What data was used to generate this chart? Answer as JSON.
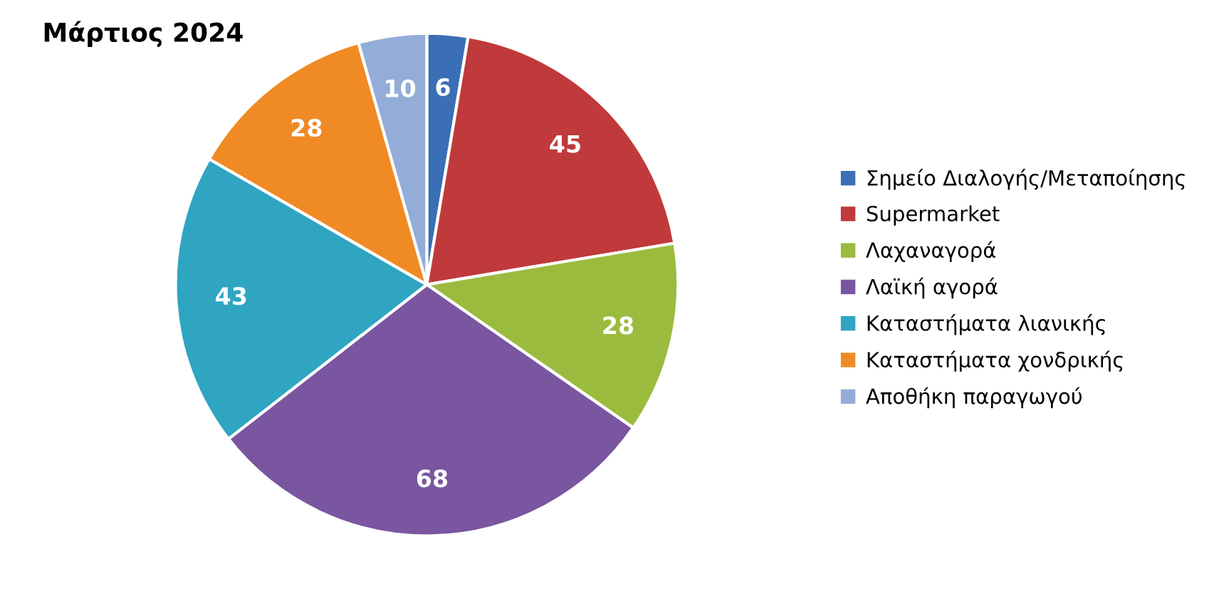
{
  "chart_data": {
    "type": "pie",
    "title": "Μάρτιος 2024",
    "categories": [
      "Σημείο Διαλογής/Μεταποίησης",
      "Supermarket",
      "Λαχαναγορά",
      "Λαϊκή αγορά",
      "Καταστήματα λιανικής",
      "Καταστήματα χονδρικής",
      "Αποθήκη παραγωγού"
    ],
    "values": [
      6,
      45,
      28,
      68,
      43,
      28,
      10
    ],
    "colors": [
      "#3a6fb5",
      "#c0393b",
      "#9bbb3f",
      "#7a55a0",
      "#2fa5c2",
      "#f08a24",
      "#93acd8"
    ],
    "data_labels": true,
    "legend": "right"
  }
}
